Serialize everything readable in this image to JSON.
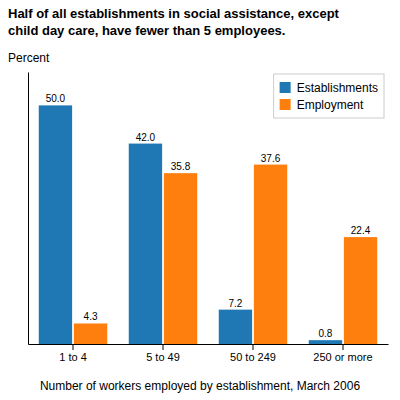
{
  "chart_data": {
    "type": "bar",
    "title": [
      "Half of all establishments in social assistance, except",
      "child day care, have fewer than 5 employees."
    ],
    "ylabel": "Percent",
    "xlabel": "Number of workers employed by establishment, March 2006",
    "categories": [
      "1 to 4",
      "5 to 49",
      "50 to 249",
      "250 or more"
    ],
    "series": [
      {
        "name": "Establishments",
        "values": [
          50.0,
          42.0,
          7.2,
          0.8
        ],
        "value_labels": [
          "50.0",
          "42.0",
          "7.2",
          "0.8"
        ]
      },
      {
        "name": "Employment",
        "values": [
          4.3,
          35.8,
          37.6,
          22.4
        ],
        "value_labels": [
          "4.3",
          "35.8",
          "37.6",
          "22.4"
        ]
      }
    ],
    "ylim": [
      0,
      57
    ],
    "tick_labels": "x",
    "data_labels": true,
    "legend": "upper right",
    "grid": false
  }
}
